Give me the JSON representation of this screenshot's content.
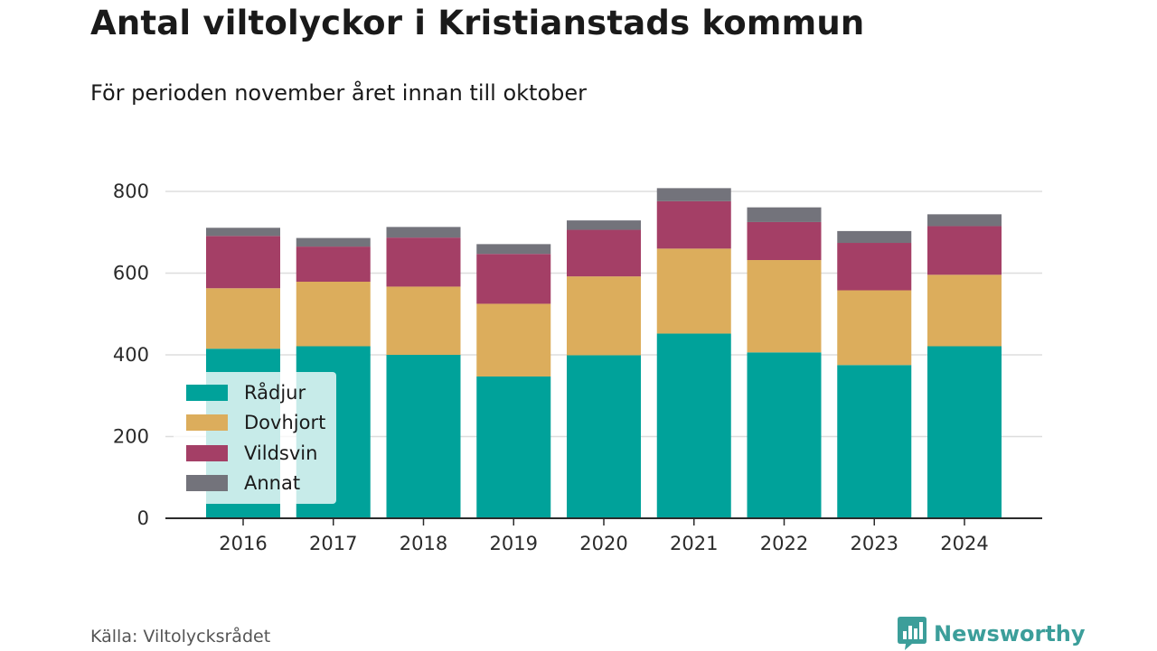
{
  "title": "Antal viltolyckor i Kristianstads kommun",
  "subtitle": "För perioden november året innan till oktober",
  "source": "Källa: Viltolycksrådet",
  "brand": {
    "name": "Newsworthy",
    "icon": "bar-chart-logo-icon",
    "color": "#3c9e9a"
  },
  "chart_data": {
    "type": "bar",
    "stacked": true,
    "categories": [
      "2016",
      "2017",
      "2018",
      "2019",
      "2020",
      "2021",
      "2022",
      "2023",
      "2024"
    ],
    "series": [
      {
        "name": "Rådjur",
        "color": "#00a29a",
        "values": [
          415,
          421,
          400,
          347,
          399,
          452,
          406,
          375,
          421
        ]
      },
      {
        "name": "Dovhjort",
        "color": "#dcad5c",
        "values": [
          148,
          158,
          167,
          178,
          193,
          208,
          226,
          183,
          175
        ]
      },
      {
        "name": "Vildsvin",
        "color": "#a43f66",
        "values": [
          128,
          86,
          120,
          122,
          114,
          116,
          93,
          116,
          119
        ]
      },
      {
        "name": "Annat",
        "color": "#73737b",
        "values": [
          20,
          21,
          26,
          24,
          23,
          32,
          36,
          29,
          29
        ]
      }
    ],
    "yticks": [
      0,
      200,
      400,
      600,
      800
    ],
    "ylim": [
      0,
      840
    ],
    "grid": true,
    "legend_position": "bottom-left"
  }
}
